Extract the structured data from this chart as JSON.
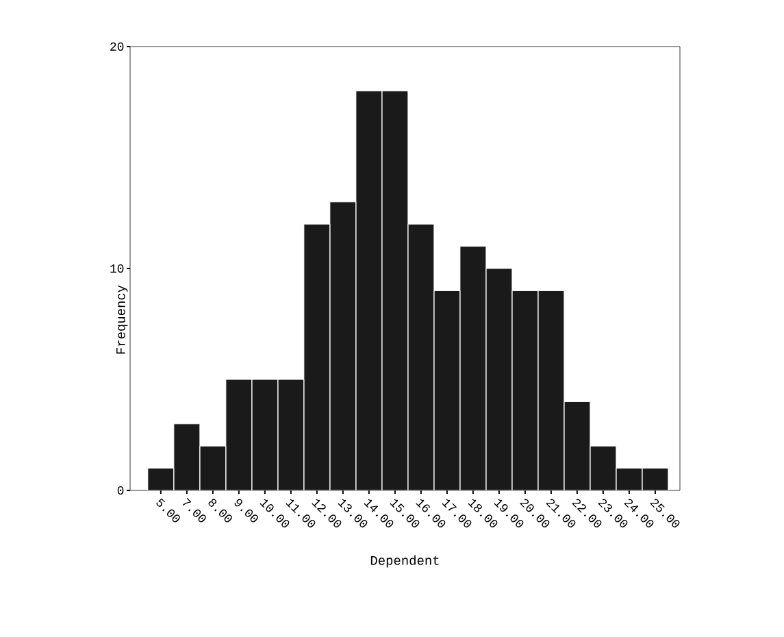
{
  "chart_data": {
    "type": "bar",
    "xlabel": "Dependent",
    "ylabel": "Frequency",
    "categories": [
      "5.00",
      "7.00",
      "8.00",
      "9.00",
      "10.00",
      "11.00",
      "12.00",
      "13.00",
      "14.00",
      "15.00",
      "16.00",
      "17.00",
      "18.00",
      "19.00",
      "20.00",
      "21.00",
      "22.00",
      "23.00",
      "24.00",
      "25.00"
    ],
    "values": [
      1,
      3,
      2,
      5,
      5,
      5,
      12,
      13,
      18,
      18,
      12,
      9,
      11,
      10,
      9,
      9,
      4,
      2,
      1,
      1
    ],
    "color": "#1a1a1a",
    "ylim": [
      0,
      20
    ],
    "yticks": [
      0,
      10,
      20
    ]
  }
}
